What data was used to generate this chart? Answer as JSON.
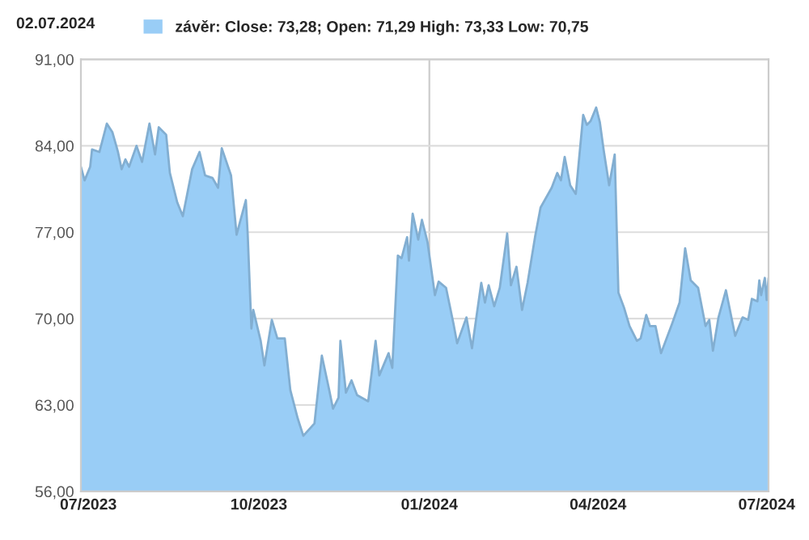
{
  "chart_data": {
    "type": "area",
    "annotations": [
      "02.07.2024"
    ],
    "x": [
      "2023-06-27",
      "2023-06-29",
      "2023-07-02",
      "2023-07-03",
      "2023-07-07",
      "2023-07-11",
      "2023-07-14",
      "2023-07-17",
      "2023-07-19",
      "2023-07-21",
      "2023-07-23",
      "2023-07-27",
      "2023-07-30",
      "2023-08-03",
      "2023-08-06",
      "2023-08-08",
      "2023-08-12",
      "2023-08-14",
      "2023-08-18",
      "2023-08-21",
      "2023-08-26",
      "2023-08-30",
      "2023-09-02",
      "2023-09-06",
      "2023-09-09",
      "2023-09-11",
      "2023-09-16",
      "2023-09-19",
      "2023-09-24",
      "2023-09-25",
      "2023-09-27",
      "2023-09-28",
      "2023-10-02",
      "2023-10-04",
      "2023-10-08",
      "2023-10-11",
      "2023-10-15",
      "2023-10-18",
      "2023-10-22",
      "2023-10-25",
      "2023-10-31",
      "2023-11-04",
      "2023-11-08",
      "2023-11-10",
      "2023-11-13",
      "2023-11-14",
      "2023-11-17",
      "2023-11-20",
      "2023-11-23",
      "2023-11-29",
      "2023-12-03",
      "2023-12-05",
      "2023-12-10",
      "2023-12-12",
      "2023-12-15",
      "2023-12-17",
      "2023-12-20",
      "2023-12-21",
      "2023-12-23",
      "2023-12-26",
      "2023-12-28",
      "2023-12-31",
      "2024-01-04",
      "2024-01-06",
      "2024-01-10",
      "2024-01-14",
      "2024-01-16",
      "2024-01-21",
      "2024-01-24",
      "2024-01-29",
      "2024-01-31",
      "2024-02-02",
      "2024-02-05",
      "2024-02-08",
      "2024-02-12",
      "2024-02-14",
      "2024-02-17",
      "2024-02-20",
      "2024-02-23",
      "2024-02-27",
      "2024-03-01",
      "2024-03-07",
      "2024-03-10",
      "2024-03-12",
      "2024-03-14",
      "2024-03-17",
      "2024-03-20",
      "2024-03-24",
      "2024-03-26",
      "2024-03-28",
      "2024-03-31",
      "2024-04-02",
      "2024-04-04",
      "2024-04-07",
      "2024-04-10",
      "2024-04-12",
      "2024-04-15",
      "2024-04-18",
      "2024-04-22",
      "2024-04-24",
      "2024-04-27",
      "2024-04-29",
      "2024-05-02",
      "2024-05-05",
      "2024-05-11",
      "2024-05-15",
      "2024-05-18",
      "2024-05-21",
      "2024-05-25",
      "2024-05-29",
      "2024-05-31",
      "2024-06-02",
      "2024-06-05",
      "2024-06-09",
      "2024-06-14",
      "2024-06-18",
      "2024-06-21",
      "2024-06-23",
      "2024-06-26",
      "2024-06-27",
      "2024-06-28",
      "2024-06-30",
      "2024-07-01",
      "2024-07-02"
    ],
    "series": [
      {
        "name": "závěr: Close: 73,28; Open: 71,29 High: 73,33 Low: 70,75",
        "color": "#99cdf6",
        "values": [
          82.3,
          81.2,
          82.3,
          83.7,
          83.5,
          85.8,
          85.1,
          83.5,
          82.1,
          82.9,
          82.3,
          84.0,
          82.7,
          85.8,
          83.3,
          85.5,
          84.9,
          81.8,
          79.4,
          78.3,
          82.1,
          83.5,
          81.6,
          81.4,
          80.6,
          83.8,
          81.6,
          76.8,
          79.6,
          76.8,
          69.2,
          70.7,
          68.2,
          66.2,
          69.9,
          68.4,
          68.4,
          64.2,
          61.9,
          60.5,
          61.5,
          67.0,
          64.2,
          62.7,
          63.6,
          68.2,
          64.0,
          65.0,
          63.8,
          63.3,
          68.2,
          65.4,
          67.2,
          66.0,
          75.1,
          74.9,
          76.6,
          74.7,
          78.5,
          76.4,
          78.0,
          76.2,
          71.9,
          73.0,
          72.5,
          69.6,
          68.0,
          70.1,
          67.6,
          72.9,
          71.3,
          72.7,
          71.0,
          72.5,
          76.9,
          72.7,
          74.2,
          70.7,
          72.9,
          76.6,
          79.0,
          80.6,
          81.8,
          81.2,
          83.1,
          80.8,
          80.1,
          86.5,
          85.7,
          86.0,
          87.1,
          85.9,
          83.7,
          80.8,
          83.3,
          72.1,
          70.9,
          69.4,
          68.2,
          68.4,
          70.3,
          69.4,
          69.4,
          67.2,
          69.6,
          71.3,
          75.7,
          73.1,
          72.5,
          69.4,
          69.9,
          67.4,
          70.1,
          72.3,
          68.6,
          70.1,
          69.9,
          71.6,
          71.4,
          73.1,
          71.9,
          73.3,
          71.5,
          73.28
        ]
      }
    ],
    "xlim": [
      "2023-06-27",
      "2024-07-02"
    ],
    "xticks": [
      {
        "value": "2023-07-01",
        "label": "07/2023"
      },
      {
        "value": "2023-10-01",
        "label": "10/2023"
      },
      {
        "value": "2024-01-01",
        "label": "01/2024"
      },
      {
        "value": "2024-04-01",
        "label": "04/2024"
      },
      {
        "value": "2024-07-01",
        "label": "07/2024"
      }
    ],
    "ylim": [
      56,
      91
    ],
    "yticks": [
      {
        "value": 56,
        "label": "56,00"
      },
      {
        "value": 63,
        "label": "63,00"
      },
      {
        "value": 70,
        "label": "70,00"
      },
      {
        "value": 77,
        "label": "77,00"
      },
      {
        "value": 84,
        "label": "84,00"
      },
      {
        "value": 91,
        "label": "91,00"
      }
    ],
    "ref_lines": [
      {
        "axis": "x",
        "value": "2024-01-01",
        "label": null,
        "color": "#cccccc"
      }
    ],
    "grid": "y",
    "legend": "top left"
  }
}
